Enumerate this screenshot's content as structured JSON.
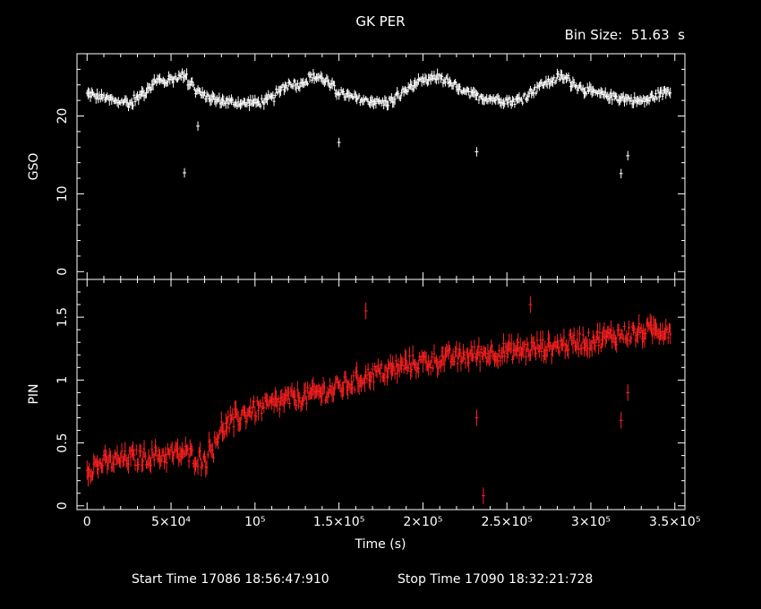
{
  "title": "GK PER",
  "bin_size_label": "Bin Size:  51.63  s",
  "start_time_label": "Start Time 17086 18:56:47:910",
  "stop_time_label": "Stop Time 17090 18:32:21:728",
  "chart_data": [
    {
      "type": "scatter",
      "panel": "top",
      "ylabel": "GSO",
      "xlim": [
        -6000,
        356000
      ],
      "ylim": [
        -1,
        28
      ],
      "yticks": [
        0,
        10,
        20
      ],
      "ytick_labels": [
        "0",
        "10",
        "20"
      ],
      "color": "#ffffff",
      "shape": {
        "center": 23,
        "amplitude": 1.7,
        "period": 98000,
        "phase": 36000
      },
      "x": [
        2000,
        6000,
        10000,
        14000,
        18000,
        22000,
        26000,
        30000,
        34000,
        38000,
        42000,
        46000,
        50000,
        54000,
        58000,
        62000,
        66000,
        70000,
        74000,
        78000,
        82000,
        86000,
        90000,
        94000,
        98000,
        102000,
        106000,
        110000,
        114000,
        118000,
        122000,
        126000,
        130000,
        134000,
        138000,
        142000,
        146000,
        150000,
        154000,
        158000,
        162000,
        166000,
        170000,
        174000,
        178000,
        182000,
        186000,
        190000,
        194000,
        198000,
        202000,
        206000,
        210000,
        214000,
        218000,
        222000,
        226000,
        230000,
        234000,
        238000,
        242000,
        246000,
        250000,
        254000,
        258000,
        262000,
        266000,
        270000,
        274000,
        278000,
        282000,
        286000,
        290000,
        294000,
        298000,
        302000,
        306000,
        310000,
        314000,
        318000,
        322000,
        326000,
        330000,
        334000,
        338000,
        342000,
        346000
      ],
      "y": [
        22.8,
        22.5,
        22.4,
        22.1,
        21.8,
        21.9,
        21.6,
        22.3,
        23.0,
        23.8,
        24.6,
        24.4,
        24.7,
        25.0,
        25.3,
        24.2,
        23.2,
        22.6,
        22.3,
        22.0,
        21.9,
        21.8,
        21.7,
        21.6,
        21.8,
        21.7,
        21.9,
        22.3,
        23.0,
        23.8,
        24.2,
        24.0,
        24.5,
        25.0,
        25.0,
        24.6,
        23.8,
        23.1,
        22.7,
        22.4,
        22.2,
        22.0,
        21.9,
        21.8,
        21.7,
        22.0,
        22.6,
        23.3,
        23.9,
        24.3,
        24.5,
        24.8,
        25.0,
        24.6,
        24.0,
        23.4,
        23.0,
        22.7,
        22.5,
        22.3,
        22.2,
        22.1,
        22.0,
        21.9,
        22.1,
        22.6,
        23.3,
        23.9,
        24.3,
        24.6,
        25.0,
        24.8,
        24.2,
        23.7,
        23.3,
        23.0,
        22.8,
        22.6,
        22.5,
        22.3,
        22.2,
        22.0,
        21.9,
        22.1,
        22.5,
        22.9,
        23.2
      ],
      "outliers": [
        {
          "x": 58000,
          "y": 12.7
        },
        {
          "x": 66000,
          "y": 18.7
        },
        {
          "x": 150000,
          "y": 16.6
        },
        {
          "x": 232000,
          "y": 15.4
        },
        {
          "x": 318000,
          "y": 12.6
        },
        {
          "x": 322000,
          "y": 14.9
        }
      ]
    },
    {
      "type": "scatter",
      "panel": "bottom",
      "ylabel": "PIN",
      "xlabel": "Time (s)",
      "xlim": [
        -6000,
        356000
      ],
      "ylim": [
        -0.03,
        1.8
      ],
      "yticks": [
        0,
        0.5,
        1,
        1.5
      ],
      "ytick_labels": [
        "0",
        "0.5",
        "1",
        "1.5"
      ],
      "xticks": [
        0,
        50000,
        100000,
        150000,
        200000,
        250000,
        300000,
        350000
      ],
      "xtick_labels": [
        "0",
        "5×10⁴",
        "10⁵",
        "1.5×10⁵",
        "2×10⁵",
        "2.5×10⁵",
        "3×10⁵",
        "3.5×10⁵"
      ],
      "color": "#ff2020",
      "x": [
        2000,
        6000,
        10000,
        14000,
        18000,
        22000,
        26000,
        30000,
        34000,
        38000,
        42000,
        46000,
        50000,
        54000,
        58000,
        62000,
        66000,
        70000,
        74000,
        78000,
        82000,
        86000,
        90000,
        94000,
        98000,
        102000,
        106000,
        110000,
        114000,
        118000,
        122000,
        126000,
        130000,
        134000,
        138000,
        142000,
        146000,
        150000,
        154000,
        158000,
        162000,
        166000,
        170000,
        174000,
        178000,
        182000,
        186000,
        190000,
        194000,
        198000,
        202000,
        206000,
        210000,
        214000,
        218000,
        222000,
        226000,
        230000,
        234000,
        238000,
        242000,
        246000,
        250000,
        254000,
        258000,
        262000,
        266000,
        270000,
        274000,
        278000,
        282000,
        286000,
        290000,
        294000,
        298000,
        302000,
        306000,
        310000,
        314000,
        318000,
        322000,
        326000,
        330000,
        334000,
        338000,
        342000,
        346000
      ],
      "y": [
        0.3,
        0.32,
        0.34,
        0.35,
        0.36,
        0.37,
        0.38,
        0.38,
        0.39,
        0.39,
        0.4,
        0.4,
        0.41,
        0.41,
        0.42,
        0.4,
        0.38,
        0.37,
        0.45,
        0.55,
        0.62,
        0.66,
        0.7,
        0.73,
        0.76,
        0.77,
        0.79,
        0.8,
        0.82,
        0.84,
        0.85,
        0.86,
        0.87,
        0.88,
        0.9,
        0.91,
        0.92,
        0.94,
        0.96,
        0.98,
        1.0,
        1.03,
        1.05,
        1.06,
        1.07,
        1.08,
        1.1,
        1.12,
        1.13,
        1.14,
        1.15,
        1.15,
        1.16,
        1.17,
        1.18,
        1.18,
        1.19,
        1.2,
        1.21,
        1.21,
        1.22,
        1.22,
        1.23,
        1.23,
        1.24,
        1.24,
        1.25,
        1.26,
        1.26,
        1.27,
        1.28,
        1.29,
        1.3,
        1.31,
        1.31,
        1.32,
        1.33,
        1.34,
        1.35,
        1.36,
        1.37,
        1.37,
        1.38,
        1.39,
        1.4,
        1.4,
        1.4
      ],
      "outliers": [
        {
          "x": 166000,
          "y": 1.55
        },
        {
          "x": 232000,
          "y": 0.7
        },
        {
          "x": 236000,
          "y": 0.08
        },
        {
          "x": 264000,
          "y": 1.6
        },
        {
          "x": 318000,
          "y": 0.68
        },
        {
          "x": 322000,
          "y": 0.9
        }
      ]
    }
  ]
}
